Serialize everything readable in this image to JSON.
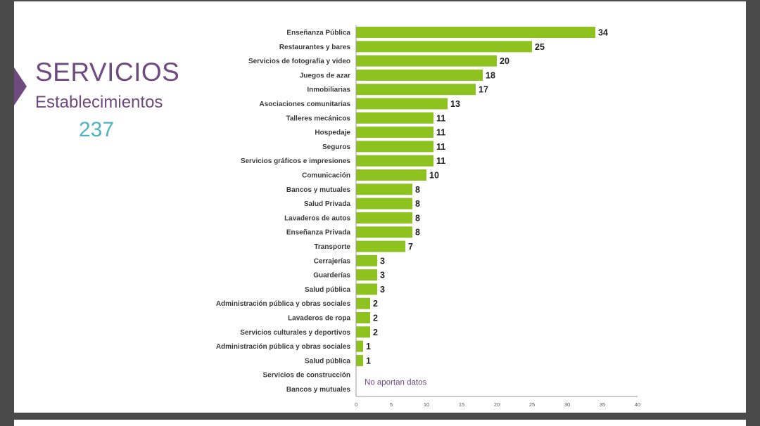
{
  "heading": {
    "title": "SERVICIOS",
    "subtitle": "Establecimientos",
    "total": "237"
  },
  "colors": {
    "bar": "#8dc21f",
    "accent": "#6e4a7e",
    "total": "#4fb3bf"
  },
  "chart_data": {
    "type": "bar",
    "orientation": "horizontal",
    "categories": [
      "Enseñanza Pública",
      "Restaurantes y bares",
      "Servicios de fotografía y video",
      "Juegos de azar",
      "Inmobiliarias",
      "Asociaciones comunitarias",
      "Talleres mecánicos",
      "Hospedaje",
      "Seguros",
      "Servicios gráficos e impresiones",
      "Comunicación",
      "Bancos y mutuales",
      "Salud Privada",
      "Lavaderos de autos",
      "Enseñanza Privada",
      "Transporte",
      "Cerrajerías",
      "Guarderías",
      "Salud pública",
      "Administración pública y obras sociales",
      "Lavaderos de ropa",
      "Servicios culturales y deportivos",
      "Administración pública y obras sociales",
      "Salud pública",
      "Servicios de construcción",
      "Bancos y mutuales"
    ],
    "values": [
      34,
      25,
      20,
      18,
      17,
      13,
      11,
      11,
      11,
      11,
      10,
      8,
      8,
      8,
      8,
      7,
      3,
      3,
      3,
      2,
      2,
      2,
      1,
      1,
      null,
      null
    ],
    "xlim": [
      0,
      40
    ],
    "xticks": [
      "0",
      "5",
      "10",
      "15",
      "20",
      "25",
      "30",
      "35",
      "40"
    ],
    "annotation": "No aportan datos",
    "grid": false
  }
}
